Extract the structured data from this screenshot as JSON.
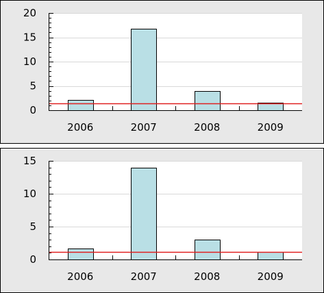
{
  "chart_data": [
    {
      "type": "bar",
      "categories": [
        "2006",
        "2007",
        "2008",
        "2009"
      ],
      "values": [
        2.1,
        16.7,
        3.9,
        1.6
      ],
      "reference_line": 1.4,
      "ylim": [
        0,
        20
      ],
      "yticks": [
        "0",
        "5",
        "10",
        "15",
        "20"
      ],
      "ytick_values": [
        0,
        5,
        10,
        15,
        20
      ],
      "minor_tick_step": 1,
      "grid": true,
      "colors": {
        "bar": "#b9dfe5",
        "bar_border": "#000000",
        "reference_line": "#e02020",
        "grid": "#d8d8d8",
        "plot_bg": "#ffffff",
        "panel_bg": "#e8e8e8"
      }
    },
    {
      "type": "bar",
      "categories": [
        "2006",
        "2007",
        "2008",
        "2009"
      ],
      "values": [
        1.7,
        14.0,
        3.0,
        1.1
      ],
      "reference_line": 1.1,
      "ylim": [
        0,
        15
      ],
      "yticks": [
        "0",
        "5",
        "10",
        "15"
      ],
      "ytick_values": [
        0,
        5,
        10,
        15
      ],
      "minor_tick_step": 1,
      "grid": true,
      "colors": {
        "bar": "#b9dfe5",
        "bar_border": "#000000",
        "reference_line": "#e02020",
        "grid": "#d8d8d8",
        "plot_bg": "#ffffff",
        "panel_bg": "#e8e8e8"
      }
    }
  ]
}
